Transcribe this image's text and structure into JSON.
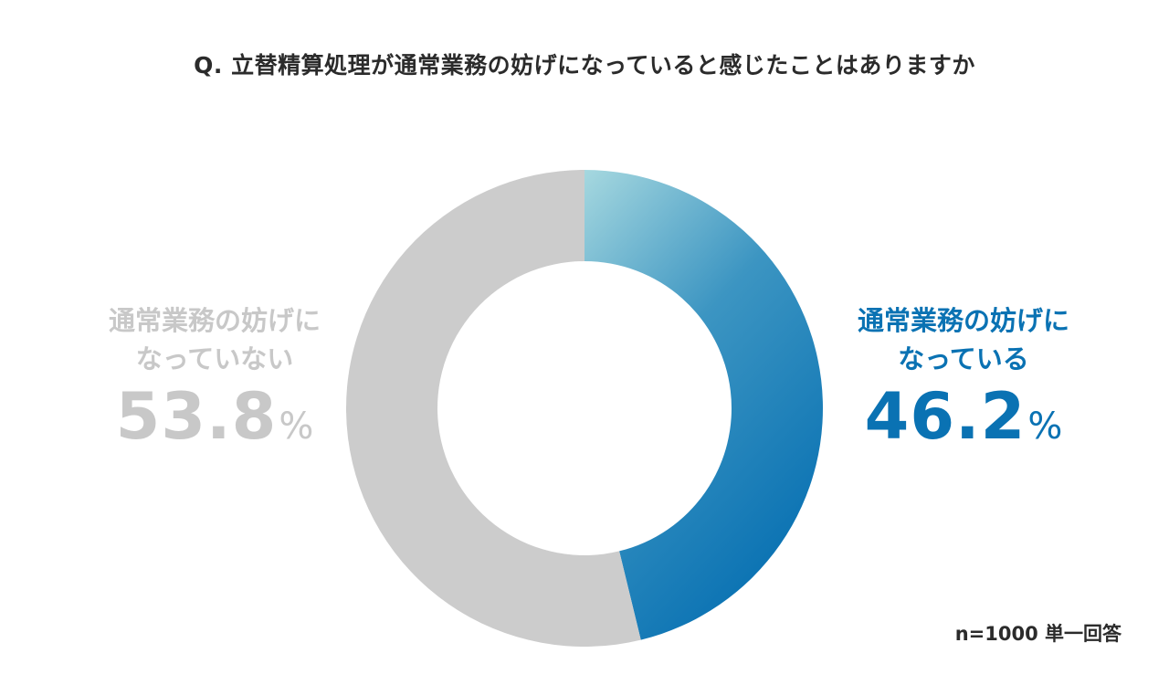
{
  "chart_data": {
    "type": "pie",
    "variant": "donut",
    "title": "Q. 立替精算処理が通常業務の妨げになっていると感じたことはありますか",
    "slices": [
      {
        "label_line1": "通常業務の妨げに",
        "label_line2": "なっている",
        "value": 46.2,
        "display": "46.2",
        "unit": "%",
        "color": "#0a72b3",
        "color_gradient_start": "#a6d8df"
      },
      {
        "label_line1": "通常業務の妨げに",
        "label_line2": "なっていない",
        "value": 53.8,
        "display": "53.8",
        "unit": "%",
        "color": "#cccccc"
      }
    ],
    "start_angle_deg": 0,
    "direction": "clockwise",
    "note": "n=1000 単一回答"
  }
}
